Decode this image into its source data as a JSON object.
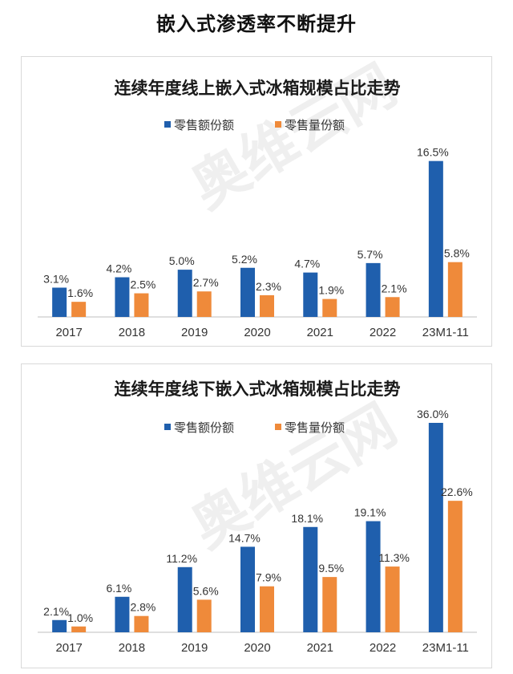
{
  "page": {
    "title": "嵌入式渗透率不断提升"
  },
  "colors": {
    "retail_value": "#1f5fad",
    "retail_volume": "#ef8a3a",
    "axis": "#bfbfbf"
  },
  "watermark": "奥维云网",
  "chart_data": [
    {
      "type": "bar",
      "title": "连续年度线上嵌入式冰箱规模占比走势",
      "categories": [
        "2017",
        "2018",
        "2019",
        "2020",
        "2021",
        "2022",
        "23M1-11"
      ],
      "series": [
        {
          "name": "零售额份额",
          "values": [
            3.1,
            4.2,
            5.0,
            5.2,
            4.7,
            5.7,
            16.5
          ],
          "labels": [
            "3.1%",
            "4.2%",
            "5.0%",
            "5.2%",
            "4.7%",
            "5.7%",
            "16.5%"
          ]
        },
        {
          "name": "零售量份额",
          "values": [
            1.6,
            2.5,
            2.7,
            2.3,
            1.9,
            2.1,
            5.8
          ],
          "labels": [
            "1.6%",
            "2.5%",
            "2.7%",
            "2.3%",
            "1.9%",
            "2.1%",
            "5.8%"
          ]
        }
      ],
      "ylim": [
        0,
        18
      ],
      "legend": "top-center",
      "grid": false
    },
    {
      "type": "bar",
      "title": "连续年度线下嵌入式冰箱规模占比走势",
      "categories": [
        "2017",
        "2018",
        "2019",
        "2020",
        "2021",
        "2022",
        "23M1-11"
      ],
      "series": [
        {
          "name": "零售额份额",
          "values": [
            2.1,
            6.1,
            11.2,
            14.7,
            18.1,
            19.1,
            36.0
          ],
          "labels": [
            "2.1%",
            "6.1%",
            "11.2%",
            "14.7%",
            "18.1%",
            "19.1%",
            "36.0%"
          ]
        },
        {
          "name": "零售量份额",
          "values": [
            1.0,
            2.8,
            5.6,
            7.9,
            9.5,
            11.3,
            22.6
          ],
          "labels": [
            "1.0%",
            "2.8%",
            "5.6%",
            "7.9%",
            "9.5%",
            "11.3%",
            "22.6%"
          ]
        }
      ],
      "ylim": [
        0,
        40
      ],
      "legend": "top-center",
      "grid": false
    }
  ]
}
